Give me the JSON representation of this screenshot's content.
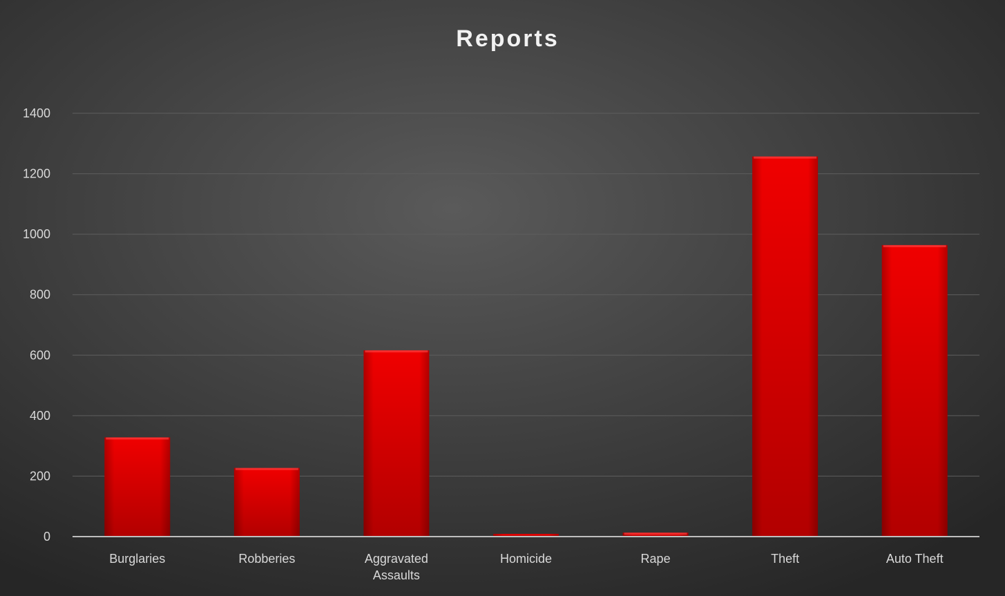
{
  "colors": {
    "bar": "#e10000",
    "bar_dark": "#b20000",
    "background_center": "#5a5a5a",
    "background_edge": "#262626",
    "gridline": "#5e5e5e",
    "axis": "#bfbfbf",
    "text": "#d9d9d9"
  },
  "chart_data": {
    "type": "bar",
    "title": "Reports",
    "xlabel": "",
    "ylabel": "",
    "categories": [
      [
        "Burglaries"
      ],
      [
        "Robberies"
      ],
      [
        "Aggravated",
        "Assaults"
      ],
      [
        "Homicide"
      ],
      [
        "Rape"
      ],
      [
        "Theft"
      ],
      [
        "Auto Theft"
      ]
    ],
    "values": [
      328,
      227,
      616,
      9,
      13,
      1257,
      964
    ],
    "ylim": [
      0,
      1400
    ],
    "yticks": [
      0,
      200,
      400,
      600,
      800,
      1000,
      1200,
      1400
    ],
    "grid": true,
    "legend": "none"
  }
}
